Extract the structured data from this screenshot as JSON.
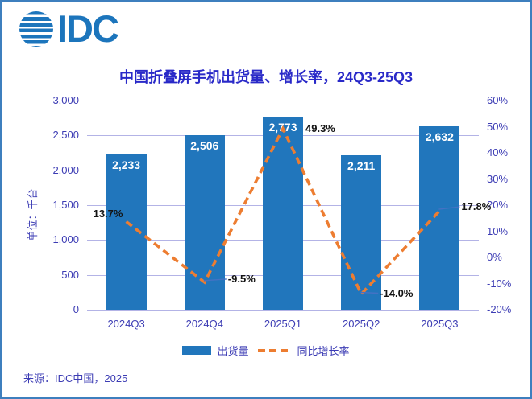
{
  "logo": {
    "text": "IDC"
  },
  "colors": {
    "bar": "#2176BC",
    "line": "#ED7D31",
    "leader": "#4472C4",
    "grid": "#B3B3E6",
    "axis_text": "#3C3CB4",
    "title_text": "#2929C8",
    "data_label_text": "#141414",
    "bar_label_text": "#FFFFFF",
    "logo_blue": "#1C75BC",
    "border": "#3E7FBE"
  },
  "chart_data": {
    "type": "bar",
    "subtype": "combo-bar-line-dual-axis",
    "title": "中国折叠屏手机出货量、增长率，24Q3-25Q3",
    "categories": [
      "2024Q3",
      "2024Q4",
      "2025Q1",
      "2025Q2",
      "2025Q3"
    ],
    "series": [
      {
        "name": "出货量",
        "type": "bar",
        "axis": "left",
        "values": [
          2233,
          2506,
          2773,
          2211,
          2632
        ],
        "data_labels": [
          "2,233",
          "2,506",
          "2,773",
          "2,211",
          "2,632"
        ]
      },
      {
        "name": "同比增长率",
        "type": "line",
        "style": "dashed",
        "axis": "right",
        "values": [
          13.7,
          -9.5,
          49.3,
          -14.0,
          17.8
        ],
        "data_labels": [
          "13.7%",
          "-9.5%",
          "49.3%",
          "-14.0%",
          "17.8%"
        ]
      }
    ],
    "left_axis": {
      "title": "单位：千台",
      "min": 0,
      "max": 3000,
      "step": 500,
      "tick_labels": [
        "3,000",
        "2,500",
        "2,000",
        "1,500",
        "1,000",
        "500",
        "0"
      ]
    },
    "right_axis": {
      "min": -20,
      "max": 60,
      "step": 10,
      "tick_labels": [
        "60%",
        "50%",
        "40%",
        "30%",
        "20%",
        "10%",
        "0%",
        "-10%",
        "-20%"
      ]
    },
    "grid": true,
    "legend_position": "bottom"
  },
  "footer": {
    "source": "来源：IDC中国，2025"
  }
}
